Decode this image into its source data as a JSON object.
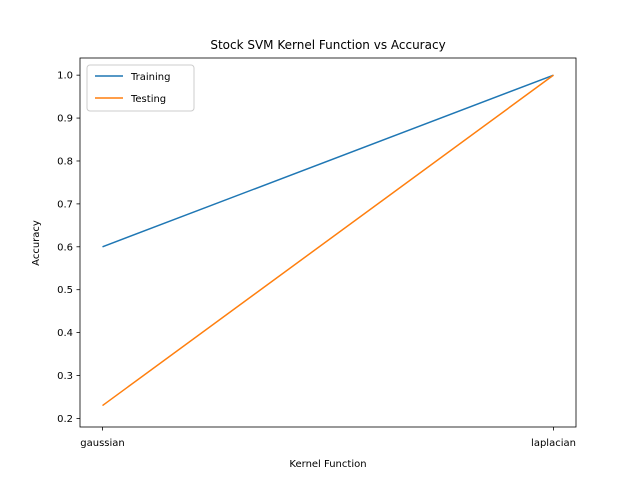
{
  "chart_data": {
    "type": "line",
    "title": "Stock SVM Kernel Function vs Accuracy",
    "xlabel": "Kernel Function",
    "ylabel": "Accuracy",
    "categories": [
      "gaussian",
      "laplacian"
    ],
    "series": [
      {
        "name": "Training",
        "values": [
          0.6,
          1.0
        ],
        "color": "#1f77b4"
      },
      {
        "name": "Testing",
        "values": [
          0.23,
          1.0
        ],
        "color": "#ff7f0e"
      }
    ],
    "ylim": [
      0.18,
      1.04
    ],
    "yticks": [
      0.2,
      0.3,
      0.4,
      0.5,
      0.6,
      0.7,
      0.8,
      0.9,
      1.0
    ],
    "ytick_labels": [
      "0.2",
      "0.3",
      "0.4",
      "0.5",
      "0.6",
      "0.7",
      "0.8",
      "0.9",
      "1.0"
    ],
    "grid": false,
    "legend": "top-left"
  }
}
